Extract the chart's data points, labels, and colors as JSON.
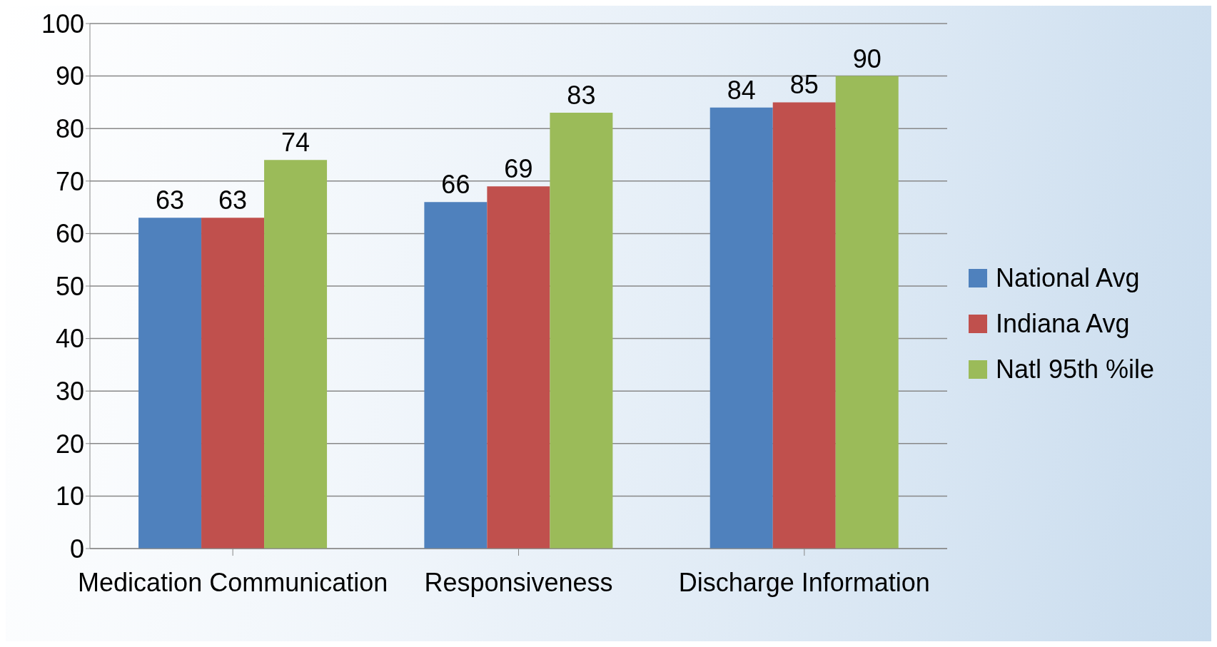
{
  "chart_data": {
    "type": "bar",
    "categories": [
      "Medication Communication",
      "Responsiveness",
      "Discharge Information"
    ],
    "series": [
      {
        "name": "National Avg",
        "color": "#4f81bd",
        "values": [
          63,
          66,
          84
        ]
      },
      {
        "name": "Indiana Avg",
        "color": "#c0504d",
        "values": [
          63,
          69,
          85
        ]
      },
      {
        "name": "Natl 95th %ile",
        "color": "#9bbb59",
        "values": [
          74,
          83,
          90
        ]
      }
    ],
    "ylim": [
      0,
      100
    ],
    "yticks": [
      0,
      10,
      20,
      30,
      40,
      50,
      60,
      70,
      80,
      90,
      100
    ],
    "grid": "y",
    "legend": "right",
    "data_labels": true
  }
}
